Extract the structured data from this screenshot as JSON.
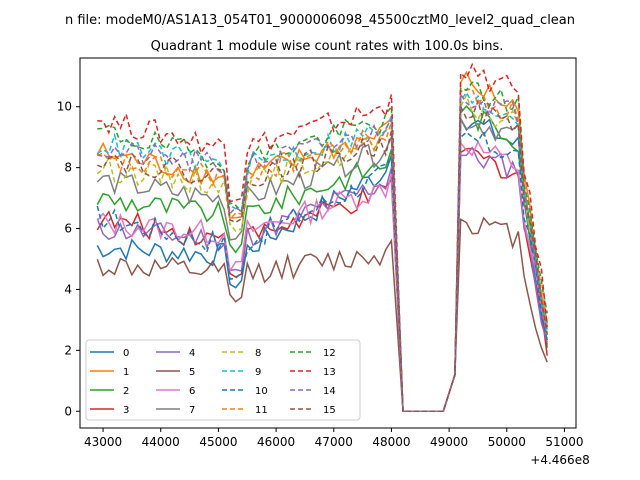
{
  "chart_data": {
    "type": "line",
    "title_line1": "n file: modeM0/AS1A13_054T01_9000006098_45500cztM0_level2_quad_clean",
    "title_line2": "Quadrant 1 module wise count rates with 100.0s bins.",
    "xlabel": "",
    "ylabel": "",
    "x_offset_label": "+4.466e8",
    "xlim": [
      42600,
      51200
    ],
    "ylim": [
      -0.55,
      11.6
    ],
    "x_ticks": [
      43000,
      44000,
      45000,
      46000,
      47000,
      48000,
      49000,
      50000,
      51000
    ],
    "x_tick_labels": [
      "43000",
      "44000",
      "45000",
      "46000",
      "47000",
      "48000",
      "49000",
      "50000",
      "51000"
    ],
    "y_ticks": [
      0,
      2,
      4,
      6,
      8,
      10
    ],
    "y_tick_labels": [
      "0",
      "2",
      "4",
      "6",
      "8",
      "10"
    ],
    "legend_position": "lower-left",
    "series": [
      {
        "name": "0",
        "color": "#1f77b4",
        "dash": "solid",
        "level1": 5.4,
        "level2": 5.1,
        "level3": 8.0,
        "peak": 9.6,
        "end": 2.0
      },
      {
        "name": "1",
        "color": "#ff7f0e",
        "dash": "solid",
        "level1": 8.5,
        "level2": 7.6,
        "level3": 9.2,
        "peak": 10.8,
        "end": 2.6
      },
      {
        "name": "2",
        "color": "#2ca02c",
        "dash": "solid",
        "level1": 7.0,
        "level2": 6.4,
        "level3": 8.2,
        "peak": 9.8,
        "end": 2.4
      },
      {
        "name": "3",
        "color": "#d62728",
        "dash": "solid",
        "level1": 6.3,
        "level2": 5.6,
        "level3": 7.2,
        "peak": 8.5,
        "end": 2.0
      },
      {
        "name": "4",
        "color": "#9467bd",
        "dash": "solid",
        "level1": 6.0,
        "level2": 5.6,
        "level3": 7.6,
        "peak": 8.4,
        "end": 2.3
      },
      {
        "name": "5",
        "color": "#8c564b",
        "dash": "solid",
        "level1": 4.8,
        "level2": 4.5,
        "level3": 5.2,
        "peak": 6.3,
        "end": 1.5
      },
      {
        "name": "6",
        "color": "#e377c2",
        "dash": "solid",
        "level1": 6.2,
        "level2": 5.8,
        "level3": 7.4,
        "peak": 8.8,
        "end": 2.3
      },
      {
        "name": "7",
        "color": "#7f7f7f",
        "dash": "solid",
        "level1": 7.6,
        "level2": 6.9,
        "level3": 8.6,
        "peak": 9.6,
        "end": 2.5
      },
      {
        "name": "8",
        "color": "#bcbd22",
        "dash": "dashed",
        "level1": 8.0,
        "level2": 7.4,
        "level3": 8.9,
        "peak": 10.0,
        "end": 2.6
      },
      {
        "name": "9",
        "color": "#17becf",
        "dash": "dashed",
        "level1": 8.8,
        "level2": 8.0,
        "level3": 9.3,
        "peak": 10.2,
        "end": 2.8
      },
      {
        "name": "10",
        "color": "#1f77b4",
        "dash": "dashed",
        "level1": 6.4,
        "level2": 5.4,
        "level3": 7.9,
        "peak": 9.0,
        "end": 2.3
      },
      {
        "name": "11",
        "color": "#ff7f0e",
        "dash": "dashed",
        "level1": 8.2,
        "level2": 7.7,
        "level3": 9.1,
        "peak": 10.5,
        "end": 2.7
      },
      {
        "name": "12",
        "color": "#2ca02c",
        "dash": "dashed",
        "level1": 9.2,
        "level2": 8.2,
        "level3": 9.6,
        "peak": 10.6,
        "end": 2.9
      },
      {
        "name": "13",
        "color": "#d62728",
        "dash": "dashed",
        "level1": 9.6,
        "level2": 8.6,
        "level3": 10.0,
        "peak": 11.1,
        "end": 3.1
      },
      {
        "name": "14",
        "color": "#9467bd",
        "dash": "dashed",
        "level1": 8.6,
        "level2": 8.0,
        "level3": 9.2,
        "peak": 10.4,
        "end": 2.7
      },
      {
        "name": "15",
        "color": "#8c564b",
        "dash": "dashed",
        "level1": 8.4,
        "level2": 7.6,
        "level3": 8.8,
        "peak": 10.0,
        "end": 2.6
      }
    ],
    "segments": {
      "active1_start": 42900,
      "dip_at": 45300,
      "dip_depth_fraction": 0.82,
      "active1_end": 48000,
      "drop_to_zero": 48200,
      "zero_until": 48900,
      "rise_at": 49100,
      "active2_end": 50700
    }
  }
}
